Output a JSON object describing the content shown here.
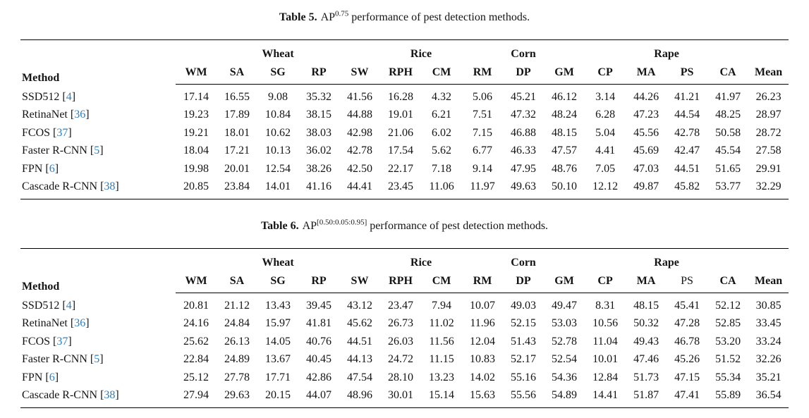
{
  "page": {
    "background": "#ffffff",
    "text_color": "#141414",
    "citation_color": "#2c7fc0"
  },
  "citation_brackets": {
    "open": "[",
    "close": "]"
  },
  "tables": [
    {
      "name": "table-5",
      "caption": {
        "label": "Table 5.",
        "metric": "AP",
        "superscript": "0.75",
        "rest": "performance of pest detection methods."
      },
      "method_header": "Method",
      "groups": [
        {
          "label": "Wheat",
          "span": 5
        },
        {
          "label": "Rice",
          "span": 2
        },
        {
          "label": "Corn",
          "span": 3
        },
        {
          "label": "Rape",
          "span": 4
        }
      ],
      "columns": [
        "WM",
        "SA",
        "SG",
        "RP",
        "SW",
        "RPH",
        "CM",
        "RM",
        "DP",
        "GM",
        "CP",
        "MA",
        "PS",
        "CA",
        "Mean"
      ],
      "non_bold_columns": [],
      "rows": [
        {
          "method": "SSD512",
          "citation": "4",
          "values": [
            "17.14",
            "16.55",
            "9.08",
            "35.32",
            "41.56",
            "16.28",
            "4.32",
            "5.06",
            "45.21",
            "46.12",
            "3.14",
            "44.26",
            "41.21",
            "41.97",
            "26.23"
          ]
        },
        {
          "method": "RetinaNet",
          "citation": "36",
          "values": [
            "19.23",
            "17.89",
            "10.84",
            "38.15",
            "44.88",
            "19.01",
            "6.21",
            "7.51",
            "47.32",
            "48.24",
            "6.28",
            "47.23",
            "44.54",
            "48.25",
            "28.97"
          ]
        },
        {
          "method": "FCOS",
          "citation": "37",
          "values": [
            "19.21",
            "18.01",
            "10.62",
            "38.03",
            "42.98",
            "21.06",
            "6.02",
            "7.15",
            "46.88",
            "48.15",
            "5.04",
            "45.56",
            "42.78",
            "50.58",
            "28.72"
          ]
        },
        {
          "method": "Faster R-CNN",
          "citation": "5",
          "values": [
            "18.04",
            "17.21",
            "10.13",
            "36.02",
            "42.78",
            "17.54",
            "5.62",
            "6.77",
            "46.33",
            "47.57",
            "4.41",
            "45.69",
            "42.47",
            "45.54",
            "27.58"
          ]
        },
        {
          "method": "FPN",
          "citation": "6",
          "values": [
            "19.98",
            "20.01",
            "12.54",
            "38.26",
            "42.50",
            "22.17",
            "7.18",
            "9.14",
            "47.95",
            "48.76",
            "7.05",
            "47.03",
            "44.51",
            "51.65",
            "29.91"
          ]
        },
        {
          "method": "Cascade R-CNN",
          "citation": "38",
          "values": [
            "20.85",
            "23.84",
            "14.01",
            "41.16",
            "44.41",
            "23.45",
            "11.06",
            "11.97",
            "49.63",
            "50.10",
            "12.12",
            "49.87",
            "45.82",
            "53.77",
            "32.29"
          ]
        }
      ]
    },
    {
      "name": "table-6",
      "caption": {
        "label": "Table 6.",
        "metric": "AP",
        "superscript": "[0.50:0.05:0.95]",
        "rest": "performance of pest detection methods."
      },
      "method_header": "Method",
      "groups": [
        {
          "label": "Wheat",
          "span": 5
        },
        {
          "label": "Rice",
          "span": 2
        },
        {
          "label": "Corn",
          "span": 3
        },
        {
          "label": "Rape",
          "span": 4
        }
      ],
      "columns": [
        "WM",
        "SA",
        "SG",
        "RP",
        "SW",
        "RPH",
        "CM",
        "RM",
        "DP",
        "GM",
        "CP",
        "MA",
        "PS",
        "CA",
        "Mean"
      ],
      "non_bold_columns": [
        "PS"
      ],
      "rows": [
        {
          "method": "SSD512",
          "citation": "4",
          "values": [
            "20.81",
            "21.12",
            "13.43",
            "39.45",
            "43.12",
            "23.47",
            "7.94",
            "10.07",
            "49.03",
            "49.47",
            "8.31",
            "48.15",
            "45.41",
            "52.12",
            "30.85"
          ]
        },
        {
          "method": "RetinaNet",
          "citation": "36",
          "values": [
            "24.16",
            "24.84",
            "15.97",
            "41.81",
            "45.62",
            "26.73",
            "11.02",
            "11.96",
            "52.15",
            "53.03",
            "10.56",
            "50.32",
            "47.28",
            "52.85",
            "33.45"
          ]
        },
        {
          "method": "FCOS",
          "citation": "37",
          "values": [
            "25.62",
            "26.13",
            "14.05",
            "40.76",
            "44.51",
            "26.03",
            "11.56",
            "12.04",
            "51.43",
            "52.78",
            "11.04",
            "49.43",
            "46.78",
            "53.20",
            "33.24"
          ]
        },
        {
          "method": "Faster R-CNN",
          "citation": "5",
          "values": [
            "22.84",
            "24.89",
            "13.67",
            "40.45",
            "44.13",
            "24.72",
            "11.15",
            "10.83",
            "52.17",
            "52.54",
            "10.01",
            "47.46",
            "45.26",
            "51.52",
            "32.26"
          ]
        },
        {
          "method": "FPN",
          "citation": "6",
          "values": [
            "25.12",
            "27.78",
            "17.71",
            "42.86",
            "47.54",
            "28.10",
            "13.23",
            "14.02",
            "55.16",
            "54.36",
            "12.84",
            "51.73",
            "47.15",
            "55.34",
            "35.21"
          ]
        },
        {
          "method": "Cascade R-CNN",
          "citation": "38",
          "values": [
            "27.94",
            "29.63",
            "20.15",
            "44.07",
            "48.96",
            "30.01",
            "15.14",
            "15.63",
            "55.56",
            "54.89",
            "14.41",
            "51.87",
            "47.41",
            "55.89",
            "36.54"
          ]
        }
      ]
    }
  ]
}
